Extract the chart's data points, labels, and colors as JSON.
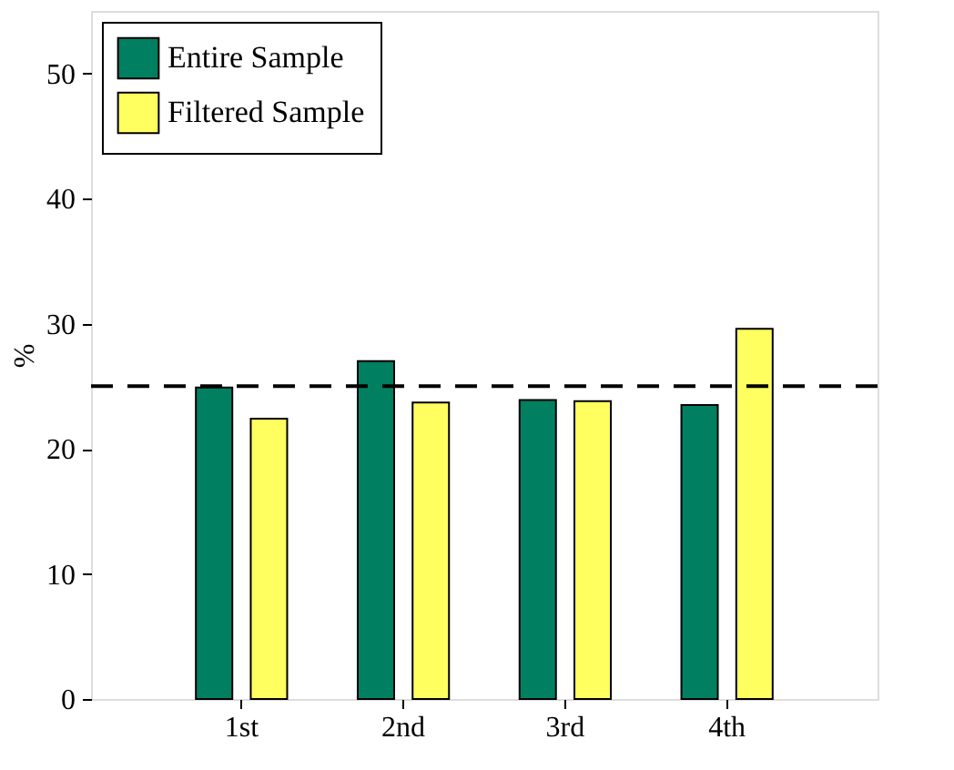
{
  "chart_data": {
    "type": "bar",
    "categories": [
      "1st",
      "2nd",
      "3rd",
      "4th"
    ],
    "series": [
      {
        "name": "Entire Sample",
        "color": "#008060",
        "values": [
          24.9,
          27.0,
          23.9,
          23.5
        ]
      },
      {
        "name": "Filtered Sample",
        "color": "#ffff60",
        "values": [
          22.4,
          23.7,
          23.8,
          29.6
        ]
      }
    ],
    "ylabel": "%",
    "ylim": [
      0,
      55
    ],
    "yticks": [
      0,
      10,
      20,
      30,
      40,
      50
    ],
    "grid": false,
    "legend": "top left",
    "ref_lines": [
      {
        "axis": "y",
        "value": 25,
        "color": "#000000",
        "line_style": "dashed"
      }
    ]
  }
}
